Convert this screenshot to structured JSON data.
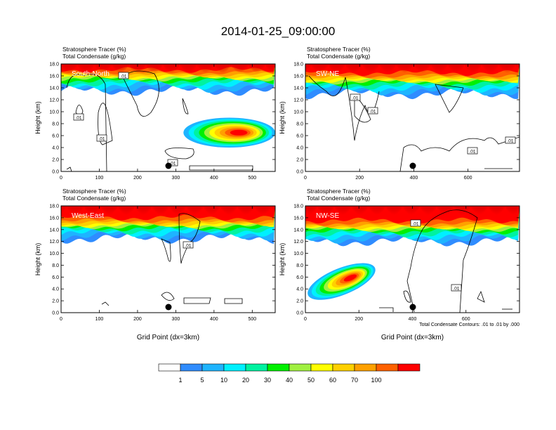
{
  "page_title": "2014-01-25_09:00:00",
  "chart_data": [
    {
      "type": "heatmap",
      "title": "Stratosphere Tracer   (%)",
      "subtitle": "Total Condensate   (g/kg)",
      "panel_label": "South-North",
      "xlabel": "",
      "ylabel": "Height (km)",
      "xlim": [
        0,
        560
      ],
      "ylim": [
        0,
        18
      ],
      "xticks": [
        "0",
        "100",
        "200",
        "300",
        "400",
        "500"
      ],
      "yticks": [
        "0.0",
        "2.0",
        "4.0",
        "6.0",
        "8.0",
        "10.0",
        "12.0",
        "14.0",
        "16.0",
        "18.0"
      ],
      "contour_labels": [
        ".01",
        ".01",
        ".01",
        ".01"
      ],
      "stratosphere_layer_base_km": 13.5,
      "tracer_blob": {
        "x_range": [
          320,
          560
        ],
        "z_range": [
          4.0,
          9.0
        ],
        "peak_percent": 90
      }
    },
    {
      "type": "heatmap",
      "title": "Stratosphere Tracer   (%)",
      "subtitle": "Total Condensate   (g/kg)",
      "panel_label": "SW-NE",
      "xlabel": "",
      "ylabel": "Height (km)",
      "xlim": [
        0,
        790
      ],
      "ylim": [
        0,
        18
      ],
      "xticks": [
        "0",
        "200",
        "400",
        "600"
      ],
      "yticks": [
        "0.0",
        "2.0",
        "4.0",
        "6.0",
        "8.0",
        "10.0",
        "12.0",
        "14.0",
        "16.0",
        "18.0"
      ],
      "contour_labels": [
        ".01",
        ".01",
        ".01",
        ".01"
      ],
      "stratosphere_layer_base_km": 13.0
    },
    {
      "type": "heatmap",
      "title": "Stratosphere Tracer   (%)",
      "subtitle": "Total Condensate   (g/kg)",
      "panel_label": "West-East",
      "xlabel": "Grid Point (dx=3km)",
      "ylabel": "Height (km)",
      "xlim": [
        0,
        560
      ],
      "ylim": [
        0,
        18
      ],
      "xticks": [
        "0",
        "100",
        "200",
        "300",
        "400",
        "500"
      ],
      "yticks": [
        "0.0",
        "2.0",
        "4.0",
        "6.0",
        "8.0",
        "10.0",
        "12.0",
        "14.0",
        "16.0",
        "18.0"
      ],
      "contour_labels": [
        ".01"
      ],
      "stratosphere_layer_base_km": 12.5
    },
    {
      "type": "heatmap",
      "title": "Stratosphere Tracer   (%)",
      "subtitle": "Total Condensate   (g/kg)",
      "panel_label": "NW-SE",
      "xlabel": "Grid Point (dx=3km)",
      "ylabel": "Height (km)",
      "xlim": [
        0,
        800
      ],
      "ylim": [
        0,
        18
      ],
      "xticks": [
        "0",
        "200",
        "400",
        "600"
      ],
      "yticks": [
        "0.0",
        "2.0",
        "4.0",
        "6.0",
        "8.0",
        "10.0",
        "12.0",
        "14.0",
        "16.0",
        "18.0"
      ],
      "contour_labels": [
        ".01",
        ".01"
      ],
      "stratosphere_layer_base_km": 12.0,
      "tracer_blob": {
        "x_range": [
          0,
          270
        ],
        "z_range": [
          3.0,
          7.5
        ],
        "peak_percent": 80
      },
      "contour_info": "Total Condensate Contours: .01 to .01 by .000"
    }
  ],
  "colorbar": {
    "labels": [
      "1",
      "5",
      "10",
      "20",
      "30",
      "40",
      "50",
      "60",
      "70",
      "100"
    ],
    "colors": [
      "#ffffff",
      "#2f8cff",
      "#1eb4ff",
      "#00f0ff",
      "#00f2a0",
      "#00f000",
      "#a0f040",
      "#ffff00",
      "#ffd000",
      "#ffa000",
      "#ff6000",
      "#ff0000"
    ]
  }
}
